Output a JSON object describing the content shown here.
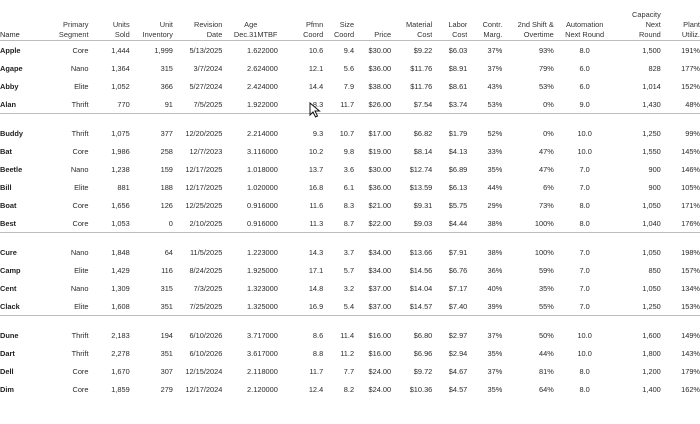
{
  "headers": {
    "name": [
      "",
      "Name"
    ],
    "segment": [
      "Primary",
      "Segment"
    ],
    "units_sold": [
      "Units",
      "Sold"
    ],
    "unit_inventory": [
      "Unit",
      "Inventory"
    ],
    "revision_date": [
      "Revision",
      "Date"
    ],
    "age": [
      "Age",
      "Dec.31"
    ],
    "mtbf": [
      "",
      "MTBF"
    ],
    "pfmn": [
      "Pfmn",
      "Coord"
    ],
    "size": [
      "Size",
      "Coord"
    ],
    "price": [
      "",
      "Price"
    ],
    "material_cost": [
      "Material",
      "Cost"
    ],
    "labor_cost": [
      "Labor",
      "Cost"
    ],
    "contr_marg": [
      "Contr.",
      "Marg."
    ],
    "second_shift": [
      "2nd Shift &",
      "Overtime"
    ],
    "automation": [
      "Automation",
      "Next Round"
    ],
    "capacity": [
      "Capacity",
      "Next",
      "Round"
    ],
    "plant_util": [
      "Plant",
      "Utiliz."
    ]
  },
  "groups": [
    {
      "rows": [
        {
          "name": "Apple",
          "segment": "Core",
          "units_sold": "1,444",
          "unit_inventory": "1,999",
          "revision_date": "5/13/2025",
          "age": "1.6",
          "mtbf": "22000",
          "pfmn": "10.6",
          "size": "9.4",
          "price": "$30.00",
          "material_cost": "$9.22",
          "labor_cost": "$6.03",
          "contr_marg": "37%",
          "second_shift": "93%",
          "automation": "8.0",
          "capacity": "1,500",
          "plant_util": "191%"
        },
        {
          "name": "Agape",
          "segment": "Nano",
          "units_sold": "1,364",
          "unit_inventory": "315",
          "revision_date": "3/7/2024",
          "age": "2.6",
          "mtbf": "24000",
          "pfmn": "12.1",
          "size": "5.6",
          "price": "$36.00",
          "material_cost": "$11.76",
          "labor_cost": "$8.91",
          "contr_marg": "37%",
          "second_shift": "79%",
          "automation": "6.0",
          "capacity": "828",
          "plant_util": "177%"
        },
        {
          "name": "Abby",
          "segment": "Elite",
          "units_sold": "1,052",
          "unit_inventory": "366",
          "revision_date": "5/27/2024",
          "age": "2.4",
          "mtbf": "24000",
          "pfmn": "14.4",
          "size": "7.9",
          "price": "$38.00",
          "material_cost": "$11.76",
          "labor_cost": "$8.61",
          "contr_marg": "43%",
          "second_shift": "53%",
          "automation": "6.0",
          "capacity": "1,014",
          "plant_util": "152%"
        },
        {
          "name": "Alan",
          "segment": "Thrift",
          "units_sold": "770",
          "unit_inventory": "91",
          "revision_date": "7/5/2025",
          "age": "1.9",
          "mtbf": "22000",
          "pfmn": "8.3",
          "size": "11.7",
          "price": "$26.00",
          "material_cost": "$7.54",
          "labor_cost": "$3.74",
          "contr_marg": "53%",
          "second_shift": "0%",
          "automation": "9.0",
          "capacity": "1,430",
          "plant_util": "48%"
        }
      ]
    },
    {
      "rows": [
        {
          "name": "Buddy",
          "segment": "Thrift",
          "units_sold": "1,075",
          "unit_inventory": "377",
          "revision_date": "12/20/2025",
          "age": "2.2",
          "mtbf": "14000",
          "pfmn": "9.3",
          "size": "10.7",
          "price": "$17.00",
          "material_cost": "$6.82",
          "labor_cost": "$1.79",
          "contr_marg": "52%",
          "second_shift": "0%",
          "automation": "10.0",
          "capacity": "1,250",
          "plant_util": "99%"
        },
        {
          "name": "Bat",
          "segment": "Core",
          "units_sold": "1,986",
          "unit_inventory": "258",
          "revision_date": "12/7/2023",
          "age": "3.1",
          "mtbf": "16000",
          "pfmn": "10.2",
          "size": "9.8",
          "price": "$19.00",
          "material_cost": "$8.14",
          "labor_cost": "$4.13",
          "contr_marg": "33%",
          "second_shift": "47%",
          "automation": "10.0",
          "capacity": "1,550",
          "plant_util": "145%"
        },
        {
          "name": "Beetle",
          "segment": "Nano",
          "units_sold": "1,238",
          "unit_inventory": "159",
          "revision_date": "12/17/2025",
          "age": "1.0",
          "mtbf": "18000",
          "pfmn": "13.7",
          "size": "3.6",
          "price": "$30.00",
          "material_cost": "$12.74",
          "labor_cost": "$6.89",
          "contr_marg": "35%",
          "second_shift": "47%",
          "automation": "7.0",
          "capacity": "900",
          "plant_util": "146%"
        },
        {
          "name": "Bill",
          "segment": "Elite",
          "units_sold": "881",
          "unit_inventory": "188",
          "revision_date": "12/17/2025",
          "age": "1.0",
          "mtbf": "20000",
          "pfmn": "16.8",
          "size": "6.1",
          "price": "$36.00",
          "material_cost": "$13.59",
          "labor_cost": "$6.13",
          "contr_marg": "44%",
          "second_shift": "6%",
          "automation": "7.0",
          "capacity": "900",
          "plant_util": "105%"
        },
        {
          "name": "Boat",
          "segment": "Core",
          "units_sold": "1,656",
          "unit_inventory": "126",
          "revision_date": "12/25/2025",
          "age": "0.9",
          "mtbf": "16000",
          "pfmn": "11.6",
          "size": "8.3",
          "price": "$21.00",
          "material_cost": "$9.31",
          "labor_cost": "$5.75",
          "contr_marg": "29%",
          "second_shift": "73%",
          "automation": "8.0",
          "capacity": "1,050",
          "plant_util": "171%"
        },
        {
          "name": "Best",
          "segment": "Core",
          "units_sold": "1,053",
          "unit_inventory": "0",
          "revision_date": "2/10/2025",
          "age": "0.9",
          "mtbf": "16000",
          "pfmn": "11.3",
          "size": "8.7",
          "price": "$22.00",
          "material_cost": "$9.03",
          "labor_cost": "$4.44",
          "contr_marg": "38%",
          "second_shift": "100%",
          "automation": "8.0",
          "capacity": "1,040",
          "plant_util": "176%"
        }
      ]
    },
    {
      "rows": [
        {
          "name": "Cure",
          "segment": "Nano",
          "units_sold": "1,848",
          "unit_inventory": "64",
          "revision_date": "11/5/2025",
          "age": "1.2",
          "mtbf": "23000",
          "pfmn": "14.3",
          "size": "3.7",
          "price": "$34.00",
          "material_cost": "$13.66",
          "labor_cost": "$7.91",
          "contr_marg": "38%",
          "second_shift": "100%",
          "automation": "7.0",
          "capacity": "1,050",
          "plant_util": "198%"
        },
        {
          "name": "Camp",
          "segment": "Elite",
          "units_sold": "1,429",
          "unit_inventory": "116",
          "revision_date": "8/24/2025",
          "age": "1.9",
          "mtbf": "25000",
          "pfmn": "17.1",
          "size": "5.7",
          "price": "$34.00",
          "material_cost": "$14.56",
          "labor_cost": "$6.76",
          "contr_marg": "36%",
          "second_shift": "59%",
          "automation": "7.0",
          "capacity": "850",
          "plant_util": "157%"
        },
        {
          "name": "Cent",
          "segment": "Nano",
          "units_sold": "1,309",
          "unit_inventory": "315",
          "revision_date": "7/3/2025",
          "age": "1.3",
          "mtbf": "23000",
          "pfmn": "14.8",
          "size": "3.2",
          "price": "$37.00",
          "material_cost": "$14.04",
          "labor_cost": "$7.17",
          "contr_marg": "40%",
          "second_shift": "35%",
          "automation": "7.0",
          "capacity": "1,050",
          "plant_util": "134%"
        },
        {
          "name": "Clack",
          "segment": "Elite",
          "units_sold": "1,608",
          "unit_inventory": "351",
          "revision_date": "7/25/2025",
          "age": "1.3",
          "mtbf": "25000",
          "pfmn": "16.9",
          "size": "5.4",
          "price": "$37.00",
          "material_cost": "$14.57",
          "labor_cost": "$7.40",
          "contr_marg": "39%",
          "second_shift": "55%",
          "automation": "7.0",
          "capacity": "1,250",
          "plant_util": "153%"
        }
      ]
    },
    {
      "rows": [
        {
          "name": "Dune",
          "segment": "Thrift",
          "units_sold": "2,183",
          "unit_inventory": "194",
          "revision_date": "6/10/2026",
          "age": "3.7",
          "mtbf": "17000",
          "pfmn": "8.6",
          "size": "11.4",
          "price": "$16.00",
          "material_cost": "$6.80",
          "labor_cost": "$2.97",
          "contr_marg": "37%",
          "second_shift": "50%",
          "automation": "10.0",
          "capacity": "1,600",
          "plant_util": "149%"
        },
        {
          "name": "Dart",
          "segment": "Thrift",
          "units_sold": "2,278",
          "unit_inventory": "351",
          "revision_date": "6/10/2026",
          "age": "3.6",
          "mtbf": "17000",
          "pfmn": "8.8",
          "size": "11.2",
          "price": "$16.00",
          "material_cost": "$6.96",
          "labor_cost": "$2.94",
          "contr_marg": "35%",
          "second_shift": "44%",
          "automation": "10.0",
          "capacity": "1,800",
          "plant_util": "143%"
        },
        {
          "name": "Dell",
          "segment": "Core",
          "units_sold": "1,670",
          "unit_inventory": "307",
          "revision_date": "12/15/2024",
          "age": "2.1",
          "mtbf": "18000",
          "pfmn": "11.7",
          "size": "7.7",
          "price": "$24.00",
          "material_cost": "$9.72",
          "labor_cost": "$4.67",
          "contr_marg": "37%",
          "second_shift": "81%",
          "automation": "8.0",
          "capacity": "1,200",
          "plant_util": "179%"
        },
        {
          "name": "Dim",
          "segment": "Core",
          "units_sold": "1,859",
          "unit_inventory": "279",
          "revision_date": "12/17/2024",
          "age": "2.1",
          "mtbf": "20000",
          "pfmn": "12.4",
          "size": "8.2",
          "price": "$24.00",
          "material_cost": "$10.36",
          "labor_cost": "$4.57",
          "contr_marg": "35%",
          "second_shift": "64%",
          "automation": "8.0",
          "capacity": "1,400",
          "plant_util": "162%"
        }
      ]
    }
  ],
  "icons": {
    "cursor": "arrow-cursor-icon"
  }
}
